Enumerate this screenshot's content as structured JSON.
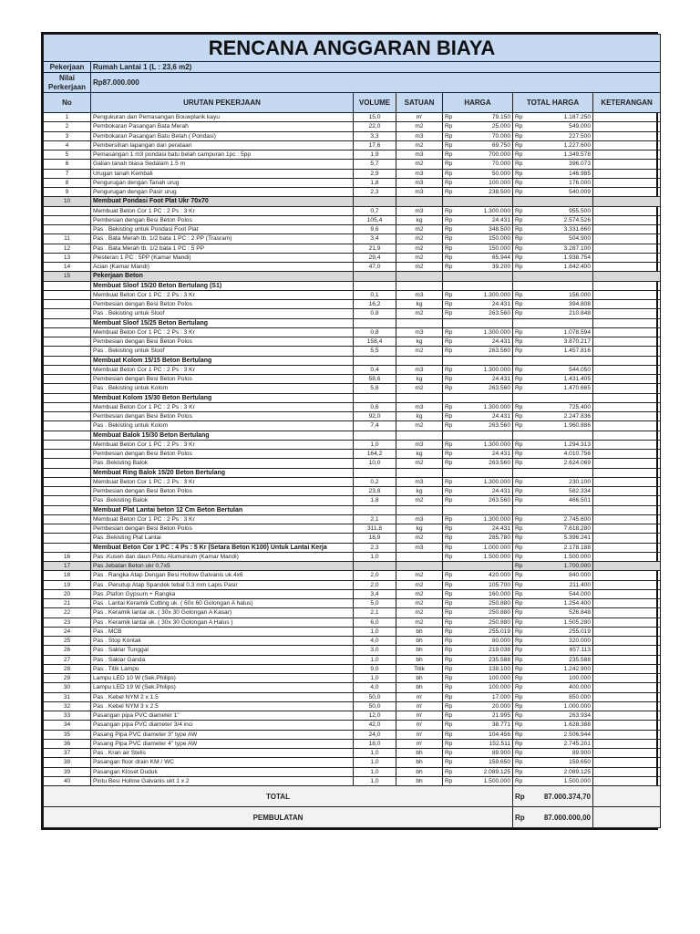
{
  "title": "RENCANA ANGGARAN BIAYA",
  "info": {
    "pekerjaan_label": "Pekerjaan",
    "pekerjaan_value": "Rumah Lantai 1 (L : 23,6 m2)",
    "nilai_label": "Nilai Perkerjaan",
    "nilai_value": "Rp87.000.000"
  },
  "headers": [
    "No",
    "URUTAN PEKERJAAN",
    "VOLUME",
    "SATUAN",
    "HARGA",
    "TOTAL HARGA",
    "KETERANGAN"
  ],
  "currency": "Rp",
  "colors": {
    "header_bg": "#c5d9f1",
    "section_bg": "#d9d9d9"
  },
  "rows": [
    [
      "1",
      "Pengukuran dan Pemasangan Bouwplank kayu",
      "15,0",
      "m'",
      "79.150",
      "1.187.250",
      ""
    ],
    [
      "2",
      "Pembokaran Pasangan Bata Merah",
      "22,0",
      "m2",
      "25.000",
      "549.000",
      ""
    ],
    [
      "3",
      "Pembokaran Pasangan Batu Belah ( Pondasi)",
      "3,3",
      "m3",
      "70.000",
      "227.500",
      ""
    ],
    [
      "4",
      "Pembersihan lapangan dan perataan",
      "17,6",
      "m2",
      "69.750",
      "1.227.600",
      ""
    ],
    [
      "5",
      "Pemasangan 1 m3  pondasi batu belah campuran 1pc : 5pp",
      "1,9",
      "m3",
      "700.000",
      "1.349.578",
      ""
    ],
    [
      "6",
      "Galian tanah biasa Sedalam 1.5 m",
      "5,7",
      "m2",
      "70.000",
      "396.073",
      ""
    ],
    [
      "7",
      "Urugan tanah Kembali",
      "2,9",
      "m3",
      "50.000",
      "146.985",
      ""
    ],
    [
      "8",
      "Pengurugan dengan Tanah urug",
      "1,8",
      "m3",
      "100.000",
      "176.000",
      ""
    ],
    [
      "9",
      "Pengurugan dengan Pasir urug",
      "2,3",
      "m3",
      "238.500",
      "540.009",
      ""
    ],
    [
      "10",
      "Membuat Pondasi Foot Plat  Ukr 70x70",
      "",
      "",
      "",
      "",
      "gb"
    ],
    [
      "",
      "Membuat Beton Cor 1 PC : 2 Ps : 3 Kr",
      "0,7",
      "m3",
      "1.300.000",
      "955.500",
      ""
    ],
    [
      "",
      "Pembesian dengan Besi Beton Polos",
      "105,4",
      "kg",
      "24.431",
      "2.574.526",
      ""
    ],
    [
      "",
      "Pas . Bekisting untuk Pondasi Foot Plat",
      "9,6",
      "m2",
      "348.500",
      "3.331.660",
      ""
    ],
    [
      "11",
      "Pas . Bata Merah tb. 1/2 bata 1 PC : 2 PP (Trasram)",
      "3,4",
      "m2",
      "150.000",
      "504.900",
      ""
    ],
    [
      "12",
      "Pas . Bata Merah tb. 1/2 bata 1 PC : 5 PP",
      "21,9",
      "m2",
      "150.000",
      "3.287.100",
      ""
    ],
    [
      "13",
      "Plesteran 1 PC : 5PP (Kamar Mandi)",
      "29,4",
      "m2",
      "65.944",
      "1.938.754",
      ""
    ],
    [
      "14",
      "Acian (Kamar Mandi)",
      "47,0",
      "m2",
      "39.200",
      "1.842.400",
      ""
    ],
    [
      "15",
      "Pekerjaan Beton",
      "",
      "",
      "",
      "",
      "gb"
    ],
    [
      "",
      "Membuat Sloof 15/20 Beton Bertulang (S1)",
      "",
      "",
      "",
      "",
      "b"
    ],
    [
      "",
      "Membuat Beton Cor 1 PC : 2 Ps : 3 Kr",
      "0,1",
      "m3",
      "1.300.000",
      "156.000",
      ""
    ],
    [
      "",
      "Pembesian dengan Besi Beton Polos",
      "16,2",
      "kg",
      "24.431",
      "394.808",
      ""
    ],
    [
      "",
      "Pas . Bekisting untuk Sloof",
      "0,8",
      "m2",
      "263.560",
      "210.848",
      ""
    ],
    [
      "",
      "Membuat Sloof 15/25 Beton Bertulang",
      "",
      "",
      "",
      "",
      "b"
    ],
    [
      "",
      "Membuat Beton Cor 1 PC : 2 Ps : 3 Kr",
      "0,8",
      "m3",
      "1.300.000",
      "1.078.594",
      ""
    ],
    [
      "",
      "Pembesian dengan Besi Beton Polos",
      "158,4",
      "kg",
      "24.431",
      "3.870.217",
      ""
    ],
    [
      "",
      "Pas . Bekisting untuk Sloof",
      "5,5",
      "m2",
      "263.560",
      "1.457.816",
      ""
    ],
    [
      "",
      "Membuat Kolom 15/15 Beton Bertulang",
      "",
      "",
      "",
      "",
      "b"
    ],
    [
      "",
      "Membuat Beton Cor 1 PC : 2 Ps : 3 Kr",
      "0,4",
      "m3",
      "1.300.000",
      "544.050",
      ""
    ],
    [
      "",
      "Pembesian dengan Besi Beton Polos",
      "58,6",
      "kg",
      "24.431",
      "1.431.405",
      ""
    ],
    [
      "",
      "Pas . Bekisting untuk Kolom",
      "5,6",
      "m2",
      "263.560",
      "1.470.665",
      ""
    ],
    [
      "",
      "Membuat Kolom 15/30 Beton Bertulang",
      "",
      "",
      "",
      "",
      "b"
    ],
    [
      "",
      "Membuat Beton Cor 1 PC : 2 Ps : 3 Kr",
      "0,6",
      "m3",
      "1.300.000",
      "725.400",
      ""
    ],
    [
      "",
      "Pembesian dengan Besi Beton Polos",
      "92,0",
      "kg",
      "24.431",
      "2.247.836",
      ""
    ],
    [
      "",
      "Pas . Bekisting untuk Kolom",
      "7,4",
      "m2",
      "263.560",
      "1.960.886",
      ""
    ],
    [
      "",
      "Membuat Balok 15/30 Beton Bertulang",
      "",
      "",
      "",
      "",
      "b"
    ],
    [
      "",
      "Membuat Beton Cor 1 PC : 2 Ps : 3 Kr",
      "1,0",
      "m3",
      "1.300.000",
      "1.294.313",
      ""
    ],
    [
      "",
      "Pembesian dengan Besi Beton Polos",
      "164,2",
      "kg",
      "24.431",
      "4.010.756",
      ""
    ],
    [
      "",
      "Pas .Bekisting Balok",
      "10,0",
      "m2",
      "263.560",
      "2.624.069",
      ""
    ],
    [
      "",
      "Membuat Ring Balok 15/20 Beton Bertulang",
      "",
      "",
      "",
      "",
      "b"
    ],
    [
      "",
      "Membuat Beton Cor 1 PC : 2 Ps : 3 Kr",
      "0,2",
      "m3",
      "1.300.000",
      "230.100",
      ""
    ],
    [
      "",
      "Pembesian dengan Besi Beton Polos",
      "23,8",
      "kg",
      "24.431",
      "582.334",
      ""
    ],
    [
      "",
      "Pas .Bekisting Balok",
      "1,8",
      "m2",
      "263.560",
      "466.501",
      ""
    ],
    [
      "",
      "Membuat Plat Lantai beton  12 Cm Beton Bertulan",
      "",
      "",
      "",
      "",
      "b"
    ],
    [
      "",
      "Membuat Beton Cor 1 PC : 2 Ps : 3 Kr",
      "2,1",
      "m3",
      "1.300.000",
      "2.745.600",
      ""
    ],
    [
      "",
      "Pembesian dengan Besi Beton Polos",
      "311,8",
      "kg",
      "24.431",
      "7.618.280",
      ""
    ],
    [
      "",
      "Pas .Bekisting Plat Lantai",
      "18,9",
      "m2",
      "285.780",
      "5.396.241",
      ""
    ],
    [
      "",
      "Membuat Beton Cor 1 PC : 4 Ps : 5 Kr (Setara Beton K100)  Untuk Lantai Kerja",
      "2,3",
      "m3",
      "1.000.000",
      "2.178.188",
      "b"
    ],
    [
      "16",
      "Pas .Kusen dan daun Pintu Alumunium (Kamar Mandi)",
      "1,0",
      "",
      "1.500.000",
      "1.500.000",
      ""
    ],
    [
      "17",
      "Pas Jebatan Beton ukr 0,7x5",
      "",
      "",
      "",
      "1.700.000",
      "g"
    ],
    [
      "18",
      "Pas . Rangka Atap Dengan Besi Hollow Galvanis  uk.4x6",
      "2,0",
      "m2",
      "420.000",
      "840.000",
      ""
    ],
    [
      "19",
      "Pas . Penutup Atap Spandek tebal 0.3  mm Lapis Pasir",
      "2,0",
      "m2",
      "105.700",
      "211.400",
      ""
    ],
    [
      "20",
      "Pas .Plafon Gypsum + Rangka",
      "3,4",
      "m2",
      "160.000",
      "544.000",
      ""
    ],
    [
      "21",
      "Pas . Lantai Keramik Cutting uk. ( 60x 60 Golongan A halus)",
      "5,0",
      "m2",
      "250.880",
      "1.254.400",
      ""
    ],
    [
      "22",
      "Pas . Keramik lantai uk. ( 30x 30 Golongan A Kasar)",
      "2,1",
      "m2",
      "250.880",
      "526.848",
      ""
    ],
    [
      "23",
      "Pas . Keramik lantai uk. ( 30x 30 Golongan A Halus )",
      "6,0",
      "m2",
      "250.880",
      "1.505.280",
      ""
    ],
    [
      "24",
      "Pas . MCB",
      "1,0",
      "bh",
      "255.019",
      "255.019",
      ""
    ],
    [
      "25",
      "Pas . Stop Kontak",
      "4,0",
      "bh",
      "80.000",
      "320.000",
      ""
    ],
    [
      "26",
      "Pas . Saklar Tunggal",
      "3,0",
      "bh",
      "219.038",
      "657.113",
      ""
    ],
    [
      "27",
      "Pas . Saklar Ganda",
      "1,0",
      "bh",
      "235.588",
      "235.588",
      ""
    ],
    [
      "28",
      "Pas . Titik Lampu",
      "9,0",
      "Titik",
      "138.100",
      "1.242.900",
      ""
    ],
    [
      "29",
      "Lampu LED 10 W  (Sek.Philips)",
      "1,0",
      "bh",
      "100.000",
      "100.000",
      ""
    ],
    [
      "30",
      "Lampu LED 19 W  (Sek.Philips)",
      "4,0",
      "bh",
      "100.000",
      "400.000",
      ""
    ],
    [
      "31",
      "Pas . Kebel NYM 2 x 1.5",
      "50,0",
      "m'",
      "17.000",
      "850.000",
      ""
    ],
    [
      "32",
      "Pas . Kebel NYM 3 x 2.5",
      "50,0",
      "m'",
      "20.000",
      "1.000.000",
      ""
    ],
    [
      "33",
      "Pasangan pipa PVC diameter 1\"",
      "12,0",
      "m'",
      "21.995",
      "263.934",
      ""
    ],
    [
      "34",
      "Pasangan pipa PVC diameter 3/4 inci",
      "42,0",
      "m'",
      "38.771",
      "1.628.388",
      ""
    ],
    [
      "35",
      "Pasang  Pipa PVC diameter 3\" type AW",
      "24,0",
      "m'",
      "104.456",
      "2.506.944",
      ""
    ],
    [
      "36",
      "Pasang  Pipa PVC diameter 4\" type AW",
      "18,0",
      "m'",
      "152.511",
      "2.745.201",
      ""
    ],
    [
      "37",
      "Pas . Kran air Stelis",
      "1,0",
      "bh",
      "89.900",
      "89.900",
      ""
    ],
    [
      "38",
      "Pasangan floor drain KM / WC",
      "1,0",
      "bh",
      "159.650",
      "159.650",
      ""
    ],
    [
      "39",
      "Pasangan Kloset Duduk",
      "1,0",
      "bh",
      "2.089.125",
      "2.089.125",
      ""
    ],
    [
      "40",
      "Pintu Besi Hollow Galvanis ukt 1 x 2",
      "1,0",
      "bh",
      "1.500.000",
      "1.500.000",
      ""
    ]
  ],
  "total": {
    "label": "TOTAL",
    "value": "87.000.374,70"
  },
  "pembulatan": {
    "label": "PEMBULATAN",
    "value": "87.000.000,00"
  }
}
